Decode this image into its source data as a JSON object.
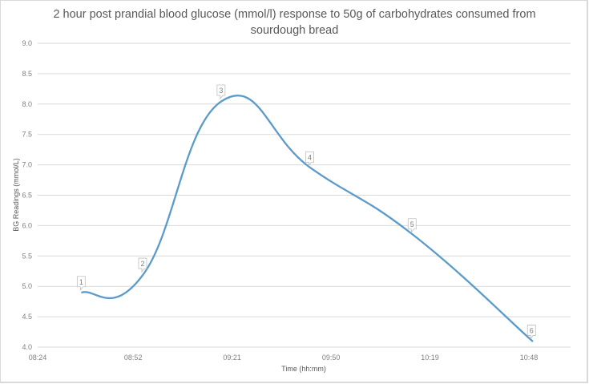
{
  "chart_data": {
    "type": "line",
    "title": "2 hour post prandial blood glucose (mmol/l) response to 50g of carbohydrates consumed from sourdough bread",
    "title_lines": [
      "2 hour post prandial blood glucose (mmol/l) response to 50g of carbohydrates consumed from",
      "sourdough bread"
    ],
    "xlabel": "Time (hh:mm)",
    "ylabel": "BG Readings (mmol/L)",
    "ylim": [
      4.0,
      9.0
    ],
    "yticks": [
      "9.0",
      "8.5",
      "8.0",
      "7.5",
      "7.0",
      "6.5",
      "6.0",
      "5.5",
      "5.0",
      "4.5",
      "4.0"
    ],
    "xticks": [
      "08:24",
      "08:52",
      "09:21",
      "09:50",
      "10:19",
      "10:48"
    ],
    "grid": true,
    "smooth": true,
    "line_color": "#5b9bc9",
    "series": [
      {
        "name": "BG Readings",
        "points": [
          {
            "label": "1",
            "time": "08:37",
            "value": 4.9
          },
          {
            "label": "2",
            "time": "08:55",
            "value": 5.2
          },
          {
            "label": "3",
            "time": "09:18",
            "value": 8.05
          },
          {
            "label": "4",
            "time": "09:44",
            "value": 6.95
          },
          {
            "label": "5",
            "time": "10:14",
            "value": 5.85
          },
          {
            "label": "6",
            "time": "10:49",
            "value": 4.1
          }
        ]
      }
    ]
  }
}
